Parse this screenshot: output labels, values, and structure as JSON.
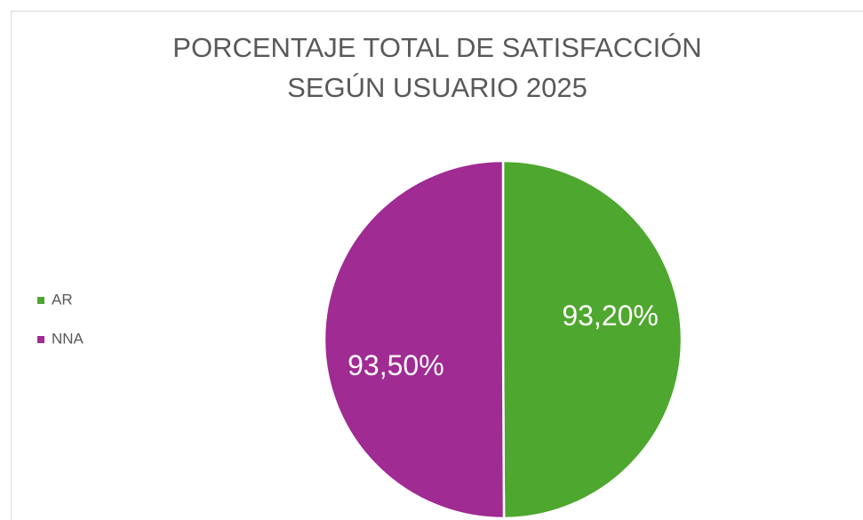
{
  "chart_data": {
    "type": "pie",
    "title": [
      "PORCENTAJE TOTAL DE SATISFACCIÓN",
      "SEGÚN USUARIO  2025"
    ],
    "categories": [
      "AR",
      "NNA"
    ],
    "values": [
      93.2,
      93.5
    ],
    "value_labels": [
      "93,20%",
      "93,50%"
    ],
    "colors": [
      "#4ea72e",
      "#a02b93"
    ],
    "legend": "left"
  }
}
